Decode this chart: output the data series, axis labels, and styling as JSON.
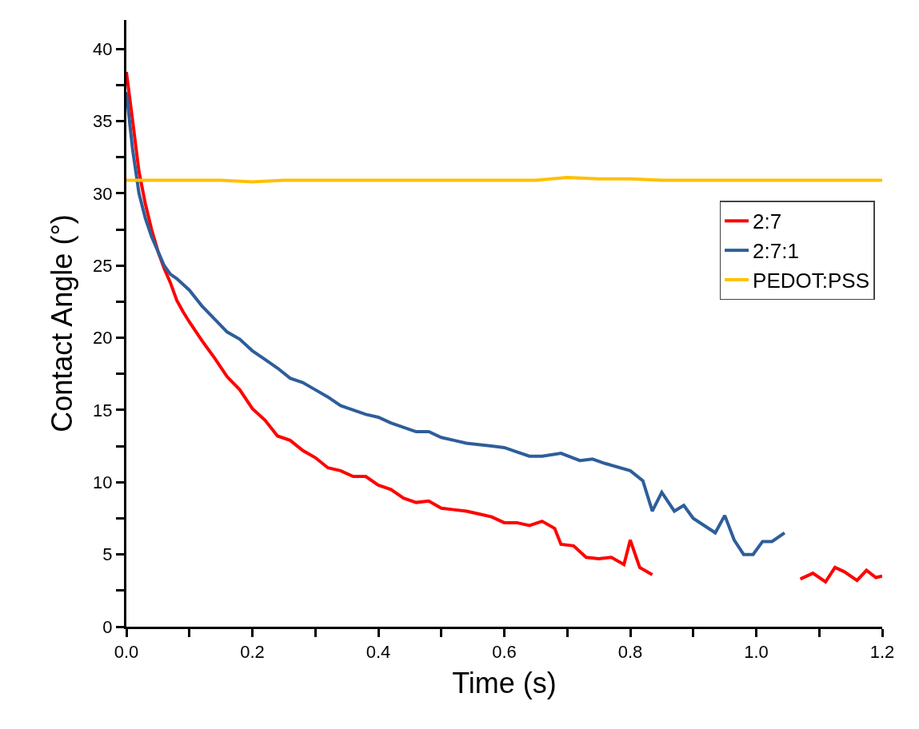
{
  "chart_data": {
    "type": "line",
    "xlabel": "Time (s)",
    "ylabel": "Contact Angle (°)",
    "xlim": [
      0,
      1.2
    ],
    "ylim": [
      0,
      42
    ],
    "xticks": [
      {
        "value": 0,
        "label": "0.0"
      },
      {
        "value": 0.1,
        "label": null
      },
      0.2,
      {
        "value": 0.3,
        "label": null
      },
      0.4,
      {
        "value": 0.5,
        "label": null
      },
      0.6,
      {
        "value": 0.7,
        "label": null
      },
      0.8,
      {
        "value": 0.9,
        "label": null
      },
      {
        "value": 1.0,
        "label": "1.0"
      },
      {
        "value": 1.1,
        "label": null
      },
      1.2
    ],
    "yticks": [
      0,
      {
        "value": 2.5,
        "label": null
      },
      5,
      {
        "value": 7.5,
        "label": null
      },
      10,
      {
        "value": 12.5,
        "label": null
      },
      15,
      {
        "value": 17.5,
        "label": null
      },
      20,
      {
        "value": 22.5,
        "label": null
      },
      25,
      {
        "value": 27.5,
        "label": null
      },
      30,
      {
        "value": 32.5,
        "label": null
      },
      35,
      {
        "value": 37.5,
        "label": null
      },
      40
    ],
    "legend": "right",
    "marker": "none",
    "line_style": "solid",
    "series": [
      {
        "name": "2:7",
        "color": "#ff0000",
        "x": [
          0,
          0.01,
          0.02,
          0.03,
          0.04,
          0.05,
          0.06,
          0.07,
          0.08,
          0.09,
          0.1,
          0.12,
          0.14,
          0.16,
          0.18,
          0.2,
          0.22,
          0.24,
          0.26,
          0.28,
          0.3,
          0.32,
          0.34,
          0.36,
          0.38,
          0.4,
          0.42,
          0.44,
          0.46,
          0.48,
          0.5,
          0.52,
          0.54,
          0.56,
          0.58,
          0.6,
          0.62,
          0.64,
          0.66,
          0.68,
          0.69,
          0.71,
          0.73,
          0.75,
          0.77,
          0.79,
          0.8,
          0.815,
          0.835,
          0.95,
          1.07,
          1.09,
          1.11,
          1.125,
          1.14,
          1.16,
          1.175,
          1.19,
          1.2
        ],
        "values": [
          38.4,
          35,
          31.5,
          29.3,
          27.5,
          26,
          24.8,
          23.8,
          22.6,
          21.8,
          21.1,
          19.8,
          18.6,
          17.3,
          16.4,
          15.1,
          14.3,
          13.2,
          12.9,
          12.2,
          11.7,
          11.0,
          10.8,
          10.4,
          10.4,
          9.8,
          9.5,
          8.9,
          8.6,
          8.7,
          8.2,
          8.1,
          8.0,
          7.8,
          7.6,
          7.2,
          7.2,
          7.0,
          7.3,
          6.8,
          5.7,
          5.6,
          4.8,
          4.7,
          4.8,
          4.3,
          6.0,
          4.1,
          3.6,
          null,
          3.3,
          3.7,
          3.1,
          4.1,
          3.8,
          3.2,
          3.9,
          3.4,
          3.5
        ]
      },
      {
        "name": "2:7:1",
        "color": "#2e5e9a",
        "x": [
          0,
          0.01,
          0.02,
          0.03,
          0.04,
          0.05,
          0.06,
          0.07,
          0.08,
          0.09,
          0.1,
          0.12,
          0.14,
          0.16,
          0.18,
          0.2,
          0.22,
          0.24,
          0.26,
          0.28,
          0.3,
          0.32,
          0.34,
          0.36,
          0.38,
          0.4,
          0.42,
          0.44,
          0.46,
          0.48,
          0.5,
          0.52,
          0.54,
          0.56,
          0.58,
          0.6,
          0.62,
          0.64,
          0.66,
          0.69,
          0.72,
          0.74,
          0.76,
          0.8,
          0.82,
          0.835,
          0.85,
          0.87,
          0.885,
          0.9,
          0.935,
          0.95,
          0.965,
          0.98,
          0.995,
          1.01,
          1.025,
          1.045
        ],
        "values": [
          37,
          33,
          30,
          28.3,
          27,
          26,
          25,
          24.4,
          24.1,
          23.7,
          23.3,
          22.2,
          21.3,
          20.4,
          19.9,
          19.1,
          18.5,
          17.9,
          17.2,
          16.9,
          16.4,
          15.9,
          15.3,
          15.0,
          14.7,
          14.5,
          14.1,
          13.8,
          13.5,
          13.5,
          13.1,
          12.9,
          12.7,
          12.6,
          12.5,
          12.4,
          12.1,
          11.8,
          11.8,
          12.0,
          11.5,
          11.6,
          11.3,
          10.8,
          10.1,
          8.0,
          9.3,
          8.0,
          8.4,
          7.5,
          6.5,
          7.7,
          6.0,
          5.0,
          5.0,
          5.9,
          5.9,
          6.5
        ]
      },
      {
        "name": "PEDOT:PSS",
        "color": "#ffc000",
        "x": [
          0,
          0.05,
          0.1,
          0.15,
          0.2,
          0.25,
          0.3,
          0.35,
          0.4,
          0.45,
          0.5,
          0.55,
          0.6,
          0.65,
          0.7,
          0.75,
          0.8,
          0.85,
          0.9,
          0.95,
          1.0,
          1.05,
          1.1,
          1.15,
          1.2
        ],
        "values": [
          30.9,
          30.9,
          30.9,
          30.9,
          30.8,
          30.9,
          30.9,
          30.9,
          30.9,
          30.9,
          30.9,
          30.9,
          30.9,
          30.9,
          31.1,
          31.0,
          31.0,
          30.9,
          30.9,
          30.9,
          30.9,
          30.9,
          30.9,
          30.9,
          30.9
        ]
      }
    ]
  }
}
